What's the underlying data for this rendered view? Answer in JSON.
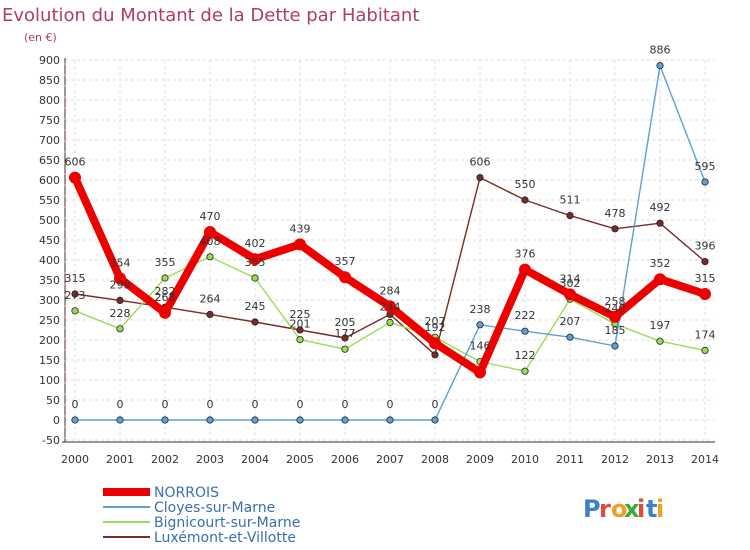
{
  "chart_data": {
    "type": "line",
    "title": "Evolution du Montant de la Dette par Habitant",
    "subtitle": "(en €)",
    "x": [
      "2000",
      "2001",
      "2002",
      "2003",
      "2004",
      "2005",
      "2006",
      "2007",
      "2008",
      "2009",
      "2010",
      "2011",
      "2012",
      "2013",
      "2014"
    ],
    "yticks": [
      "900",
      "850",
      "800",
      "750",
      "700",
      "650",
      "600",
      "550",
      "500",
      "450",
      "400",
      "350",
      "300",
      "250",
      "200",
      "150",
      "100",
      "50",
      "0",
      "-50"
    ],
    "ylim": [
      -50,
      900
    ],
    "grid": true,
    "legend_position": "bottom-left",
    "series": [
      {
        "name": "NORROIS",
        "color": "#ee0000",
        "values": [
          606,
          354,
          268,
          470,
          402,
          439,
          357,
          284,
          192,
          119,
          376,
          314,
          258,
          352,
          315
        ],
        "labels": [
          "606",
          "354",
          "268",
          "470",
          "402",
          "439",
          "357",
          "284",
          "192",
          "",
          "376",
          "314",
          "258",
          "352",
          "315"
        ]
      },
      {
        "name": "Cloyes-sur-Marne",
        "color": "#5f9fd4",
        "values": [
          0,
          0,
          0,
          0,
          0,
          0,
          0,
          0,
          0,
          238,
          222,
          207,
          185,
          886,
          595
        ],
        "labels": [
          "0",
          "0",
          "0",
          "0",
          "0",
          "0",
          "0",
          "0",
          "0",
          "238",
          "222",
          "207",
          "185",
          "886",
          "595"
        ]
      },
      {
        "name": "Bignicourt-sur-Marne",
        "color": "#99dd55",
        "values": [
          273,
          228,
          355,
          408,
          355,
          201,
          177,
          244,
          207,
          146,
          122,
          302,
          240,
          197,
          174
        ],
        "labels": [
          "273",
          "228",
          "355",
          "408",
          "355",
          "201",
          "177",
          "244",
          "207",
          "146",
          "122",
          "302",
          "240",
          "197",
          "174"
        ]
      },
      {
        "name": "Luxémont-et-Villotte",
        "color": "#7a2a2a",
        "values": [
          315,
          299,
          282,
          264,
          245,
          225,
          205,
          264,
          163,
          606,
          550,
          511,
          478,
          492,
          396
        ],
        "labels": [
          "315",
          "299",
          "282",
          "264",
          "245",
          "225",
          "205",
          "",
          "",
          "606",
          "550",
          "511",
          "478",
          "492",
          "396"
        ]
      }
    ]
  },
  "brand": {
    "name": "Proxiti",
    "letters": [
      "P",
      "r",
      "o",
      "x",
      "i",
      "t",
      "i"
    ],
    "letter_colors": [
      "#3a7fd0",
      "#e24a3c",
      "#f0a020",
      "#3aaa3a",
      "#e24a3c",
      "#3a7fd0",
      "#f0a020"
    ]
  }
}
